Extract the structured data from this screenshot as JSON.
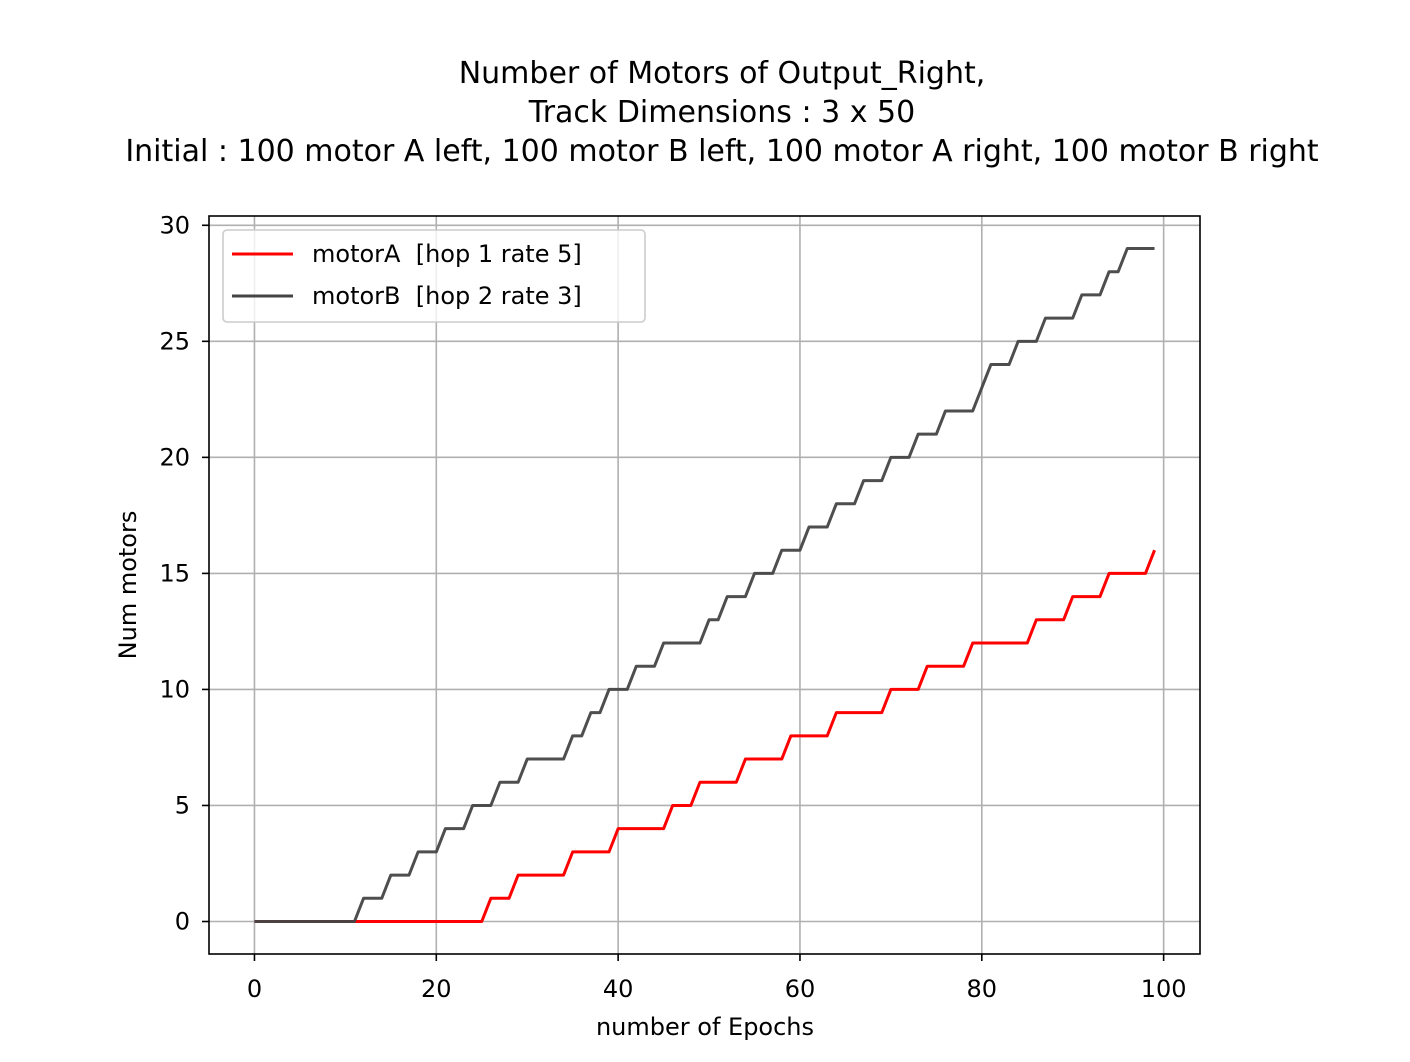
{
  "chart_data": {
    "type": "line",
    "title_lines": [
      "Number of Motors of Output_Right,",
      "Track Dimensions : 3 x 50",
      "Initial : 100 motor A left, 100 motor B left, 100 motor A right, 100 motor B right"
    ],
    "xlabel": "number of Epochs",
    "ylabel": "Num motors",
    "xlim": [
      -5,
      104
    ],
    "ylim": [
      -1.4,
      30.4
    ],
    "xticks": [
      0,
      20,
      40,
      60,
      80,
      100
    ],
    "yticks": [
      0,
      5,
      10,
      15,
      20,
      25,
      30
    ],
    "grid": true,
    "legend_position": "upper-left",
    "series": [
      {
        "name": "motorA  [hop 1 rate 5]",
        "color": "#ff0000",
        "x": [
          0,
          1,
          2,
          3,
          4,
          5,
          6,
          7,
          8,
          9,
          10,
          11,
          12,
          13,
          14,
          15,
          16,
          17,
          18,
          19,
          20,
          21,
          22,
          23,
          24,
          25,
          26,
          27,
          28,
          29,
          30,
          31,
          32,
          33,
          34,
          35,
          36,
          37,
          38,
          39,
          40,
          41,
          42,
          43,
          44,
          45,
          46,
          47,
          48,
          49,
          50,
          51,
          52,
          53,
          54,
          55,
          56,
          57,
          58,
          59,
          60,
          61,
          62,
          63,
          64,
          65,
          66,
          67,
          68,
          69,
          70,
          71,
          72,
          73,
          74,
          75,
          76,
          77,
          78,
          79,
          80,
          81,
          82,
          83,
          84,
          85,
          86,
          87,
          88,
          89,
          90,
          91,
          92,
          93,
          94,
          95,
          96,
          97,
          98,
          99
        ],
        "y": [
          0,
          0,
          0,
          0,
          0,
          0,
          0,
          0,
          0,
          0,
          0,
          0,
          0,
          0,
          0,
          0,
          0,
          0,
          0,
          0,
          0,
          0,
          0,
          0,
          0,
          0,
          1,
          1,
          1,
          2,
          2,
          2,
          2,
          2,
          2,
          3,
          3,
          3,
          3,
          3,
          4,
          4,
          4,
          4,
          4,
          4,
          5,
          5,
          5,
          6,
          6,
          6,
          6,
          6,
          7,
          7,
          7,
          7,
          7,
          8,
          8,
          8,
          8,
          8,
          9,
          9,
          9,
          9,
          9,
          9,
          10,
          10,
          10,
          10,
          11,
          11,
          11,
          11,
          11,
          12,
          12,
          12,
          12,
          12,
          12,
          12,
          13,
          13,
          13,
          13,
          14,
          14,
          14,
          14,
          15,
          15,
          15,
          15,
          15,
          16
        ]
      },
      {
        "name": "motorB  [hop 2 rate 3]",
        "color": "#444444",
        "x": [
          0,
          1,
          2,
          3,
          4,
          5,
          6,
          7,
          8,
          9,
          10,
          11,
          12,
          13,
          14,
          15,
          16,
          17,
          18,
          19,
          20,
          21,
          22,
          23,
          24,
          25,
          26,
          27,
          28,
          29,
          30,
          31,
          32,
          33,
          34,
          35,
          36,
          37,
          38,
          39,
          40,
          41,
          42,
          43,
          44,
          45,
          46,
          47,
          48,
          49,
          50,
          51,
          52,
          53,
          54,
          55,
          56,
          57,
          58,
          59,
          60,
          61,
          62,
          63,
          64,
          65,
          66,
          67,
          68,
          69,
          70,
          71,
          72,
          73,
          74,
          75,
          76,
          77,
          78,
          79,
          80,
          81,
          82,
          83,
          84,
          85,
          86,
          87,
          88,
          89,
          90,
          91,
          92,
          93,
          94,
          95,
          96,
          97,
          98,
          99
        ],
        "y": [
          0,
          0,
          0,
          0,
          0,
          0,
          0,
          0,
          0,
          0,
          0,
          0,
          1,
          1,
          1,
          2,
          2,
          2,
          3,
          3,
          3,
          4,
          4,
          4,
          5,
          5,
          5,
          6,
          6,
          6,
          7,
          7,
          7,
          7,
          7,
          8,
          8,
          9,
          9,
          10,
          10,
          10,
          11,
          11,
          11,
          12,
          12,
          12,
          12,
          12,
          13,
          13,
          14,
          14,
          14,
          15,
          15,
          15,
          16,
          16,
          16,
          17,
          17,
          17,
          18,
          18,
          18,
          19,
          19,
          19,
          20,
          20,
          20,
          21,
          21,
          21,
          22,
          22,
          22,
          22,
          23,
          24,
          24,
          24,
          25,
          25,
          25,
          26,
          26,
          26,
          26,
          27,
          27,
          27,
          28,
          28,
          29,
          29,
          29,
          29
        ]
      }
    ]
  }
}
